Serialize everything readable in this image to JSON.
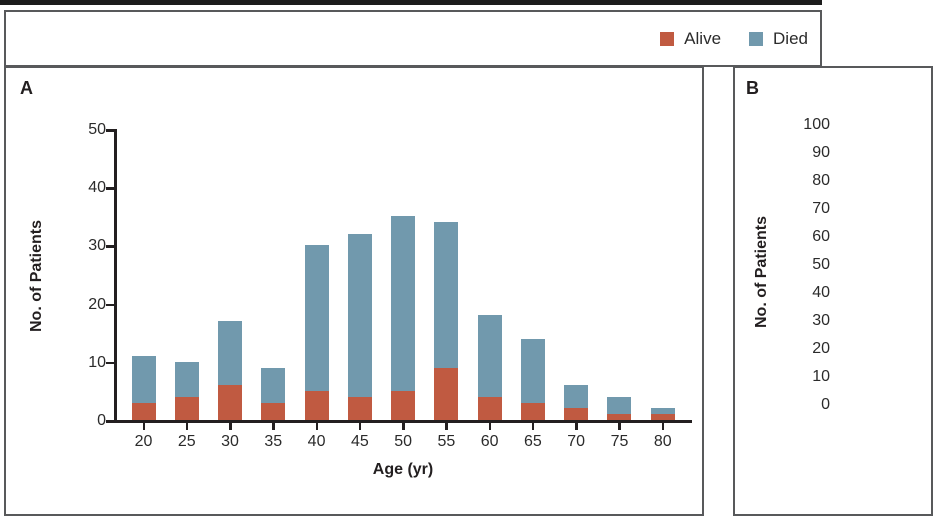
{
  "colors": {
    "alive": "#c05a41",
    "died": "#7199ad",
    "frame_border": "#58595b",
    "top_rule": "#1c1c1c",
    "text": "#231f20"
  },
  "legend": {
    "items": [
      {
        "label": "Alive",
        "color": "#c05a41"
      },
      {
        "label": "Died",
        "color": "#7199ad"
      }
    ]
  },
  "panels": {
    "a": {
      "letter": "A",
      "ylabel": "No. of Patients",
      "xlabel": "Age (yr)"
    },
    "b": {
      "letter": "B",
      "ylabel": "No. of Patients"
    }
  },
  "chart_data": [
    {
      "panel": "A",
      "type": "bar",
      "stacked": true,
      "title": "",
      "xlabel": "Age (yr)",
      "ylabel": "No. of Patients",
      "categories": [
        20,
        25,
        30,
        35,
        40,
        45,
        50,
        55,
        60,
        65,
        70,
        75,
        80
      ],
      "series": [
        {
          "name": "Alive",
          "color": "#c05a41",
          "values": [
            3,
            4,
            6,
            3,
            5,
            4,
            5,
            9,
            4,
            3,
            2,
            1,
            1
          ]
        },
        {
          "name": "Died",
          "color": "#7199ad",
          "values": [
            8,
            6,
            11,
            6,
            25,
            28,
            30,
            25,
            14,
            11,
            4,
            3,
            1
          ]
        }
      ],
      "totals": [
        11,
        10,
        17,
        9,
        30,
        32,
        35,
        34,
        18,
        14,
        6,
        4,
        2
      ],
      "ylim": [
        0,
        50
      ],
      "y_ticks": [
        0,
        10,
        20,
        30,
        40,
        50
      ],
      "x_ticks": [
        20,
        25,
        30,
        35,
        40,
        45,
        50,
        55,
        60,
        65,
        70,
        75,
        80
      ],
      "grid": false,
      "legend_position": "top-right"
    },
    {
      "panel": "B",
      "type": "bar",
      "clipped": true,
      "ylabel": "No. of Patients",
      "ylim": [
        0,
        100
      ],
      "y_ticks": [
        0,
        10,
        20,
        30,
        40,
        50,
        60,
        70,
        80,
        90,
        100
      ],
      "grid": false
    }
  ]
}
